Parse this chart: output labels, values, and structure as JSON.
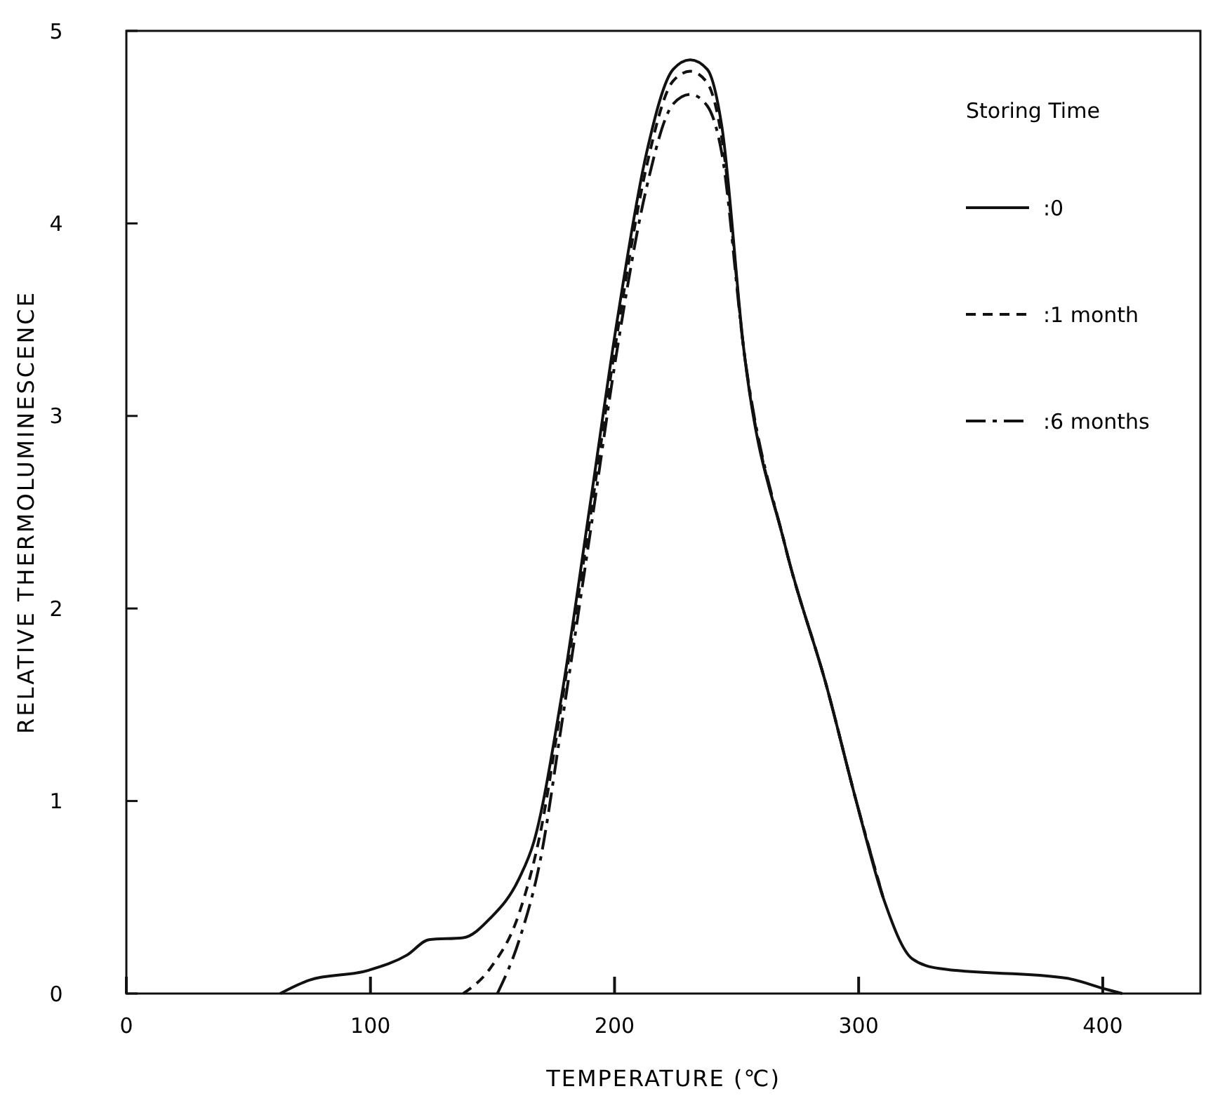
{
  "chart_data": {
    "type": "line",
    "xlabel": "TEMPERATURE (℃)",
    "ylabel": "RELATIVE THERMOLUMINESCENCE",
    "legend_title": "Storing Time",
    "legend": "top right",
    "grid": false,
    "marker": "none",
    "xlim": [
      0,
      440
    ],
    "xticks": [
      0,
      100,
      200,
      300,
      400
    ],
    "ylim": [
      0,
      5
    ],
    "yticks": [
      0,
      1,
      2,
      3,
      4,
      5
    ],
    "series": [
      {
        "name": ":0",
        "color": "#111111",
        "line_style": "solid",
        "x": [
          63,
          75,
          99,
          115,
          124,
          138,
          149,
          161,
          167,
          178,
          190,
          201,
          213,
          224,
          231,
          238,
          244,
          253,
          270,
          287,
          299,
          310,
          322,
          333,
          385,
          402,
          408
        ],
        "values": [
          0,
          0.07,
          0.12,
          0.2,
          0.28,
          0.29,
          0.39,
          0.6,
          0.79,
          1.52,
          2.54,
          3.49,
          4.36,
          4.8,
          4.85,
          4.8,
          4.5,
          3.34,
          2.32,
          1.59,
          1.0,
          0.5,
          0.18,
          0.13,
          0.08,
          0.02,
          0
        ]
      },
      {
        "name": ":1 month",
        "color": "#111111",
        "line_style": "dashed",
        "x": [
          138,
          149,
          161,
          170,
          178,
          190,
          201,
          213,
          224,
          231,
          238,
          244,
          253,
          270,
          287,
          299,
          310
        ],
        "values": [
          0,
          0.13,
          0.42,
          0.86,
          1.48,
          2.47,
          3.42,
          4.29,
          4.74,
          4.79,
          4.73,
          4.44,
          3.34,
          2.32,
          1.59,
          1.0,
          0.5
        ]
      },
      {
        "name": ":6 months",
        "color": "#111111",
        "line_style": "dashdot",
        "x": [
          152,
          161,
          170,
          178,
          190,
          201,
          213,
          224,
          231,
          238,
          244,
          253,
          270,
          287,
          299,
          310
        ],
        "values": [
          0,
          0.28,
          0.72,
          1.37,
          2.39,
          3.34,
          4.18,
          4.62,
          4.67,
          4.61,
          4.36,
          3.34,
          2.32,
          1.59,
          1.0,
          0.5
        ]
      }
    ]
  }
}
